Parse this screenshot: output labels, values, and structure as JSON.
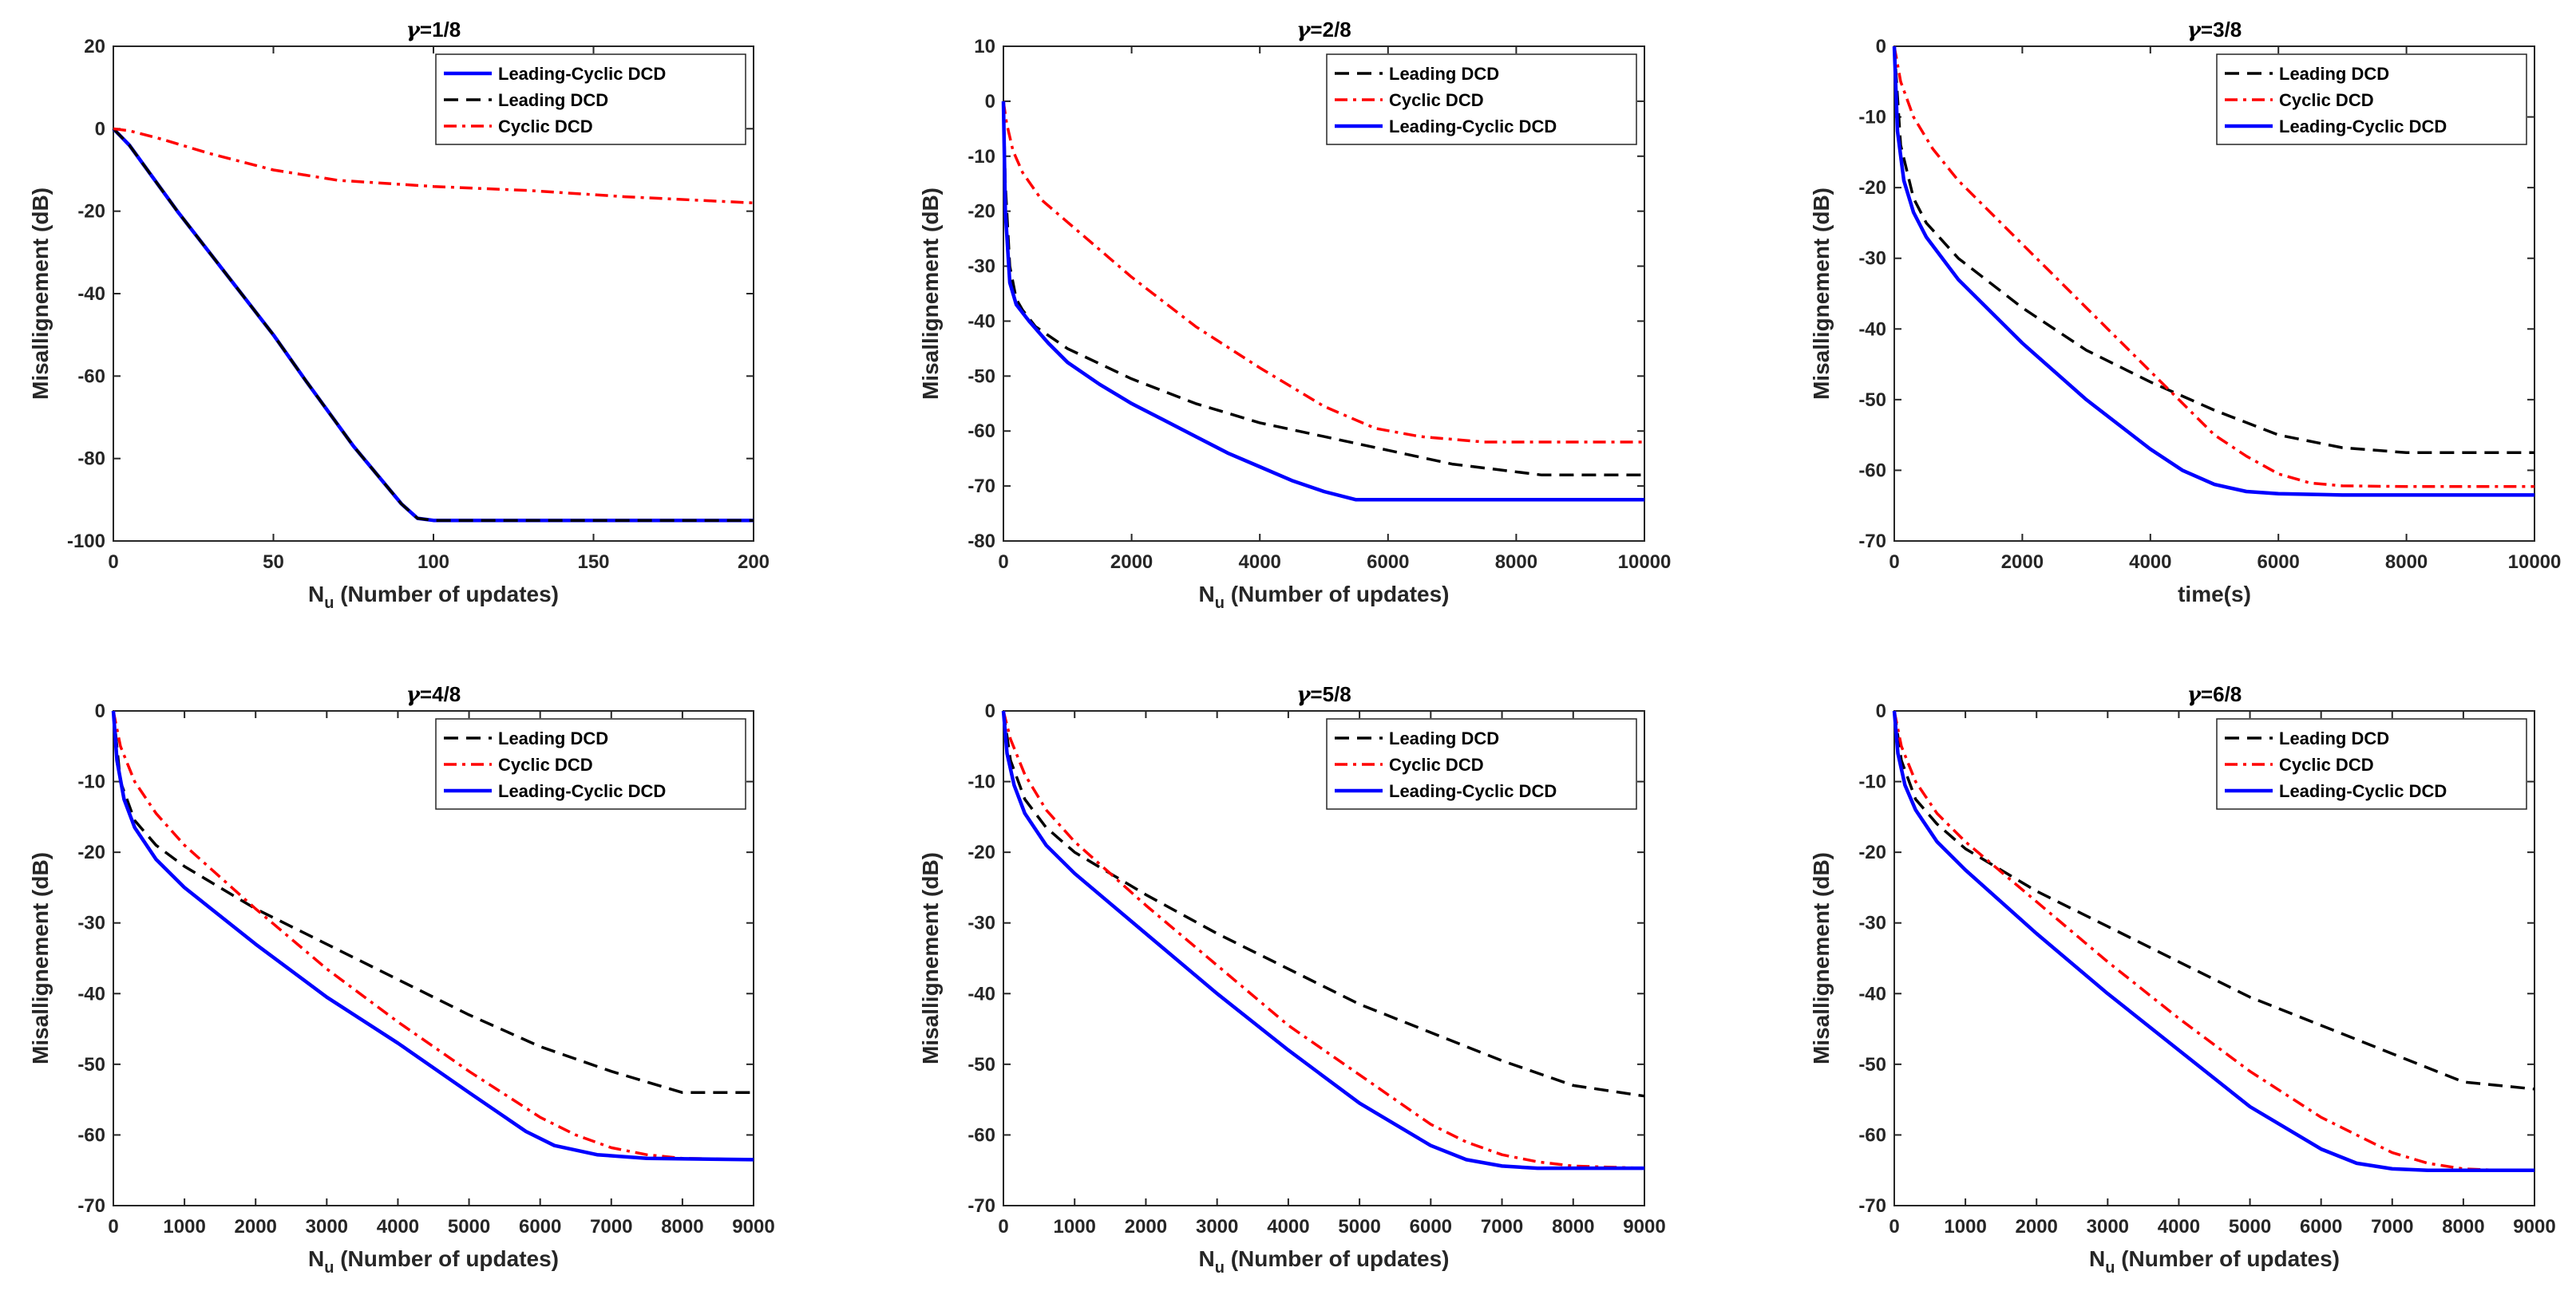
{
  "chart_data": [
    {
      "type": "line",
      "title_prefix": "γ",
      "title": "=1/8",
      "xlabel_main": "N",
      "xlabel_sub": "u",
      "xlabel_rest": " (Number of updates)",
      "ylabel": "Misallignement (dB)",
      "xlim": [
        0,
        200
      ],
      "ylim": [
        -100,
        20
      ],
      "xticks": [
        0,
        50,
        100,
        150,
        200
      ],
      "yticks": [
        20,
        0,
        -20,
        -40,
        -60,
        -80,
        -100
      ],
      "legend_position": "top-right",
      "series": [
        {
          "name": "Leading-Cyclic DCD",
          "style": "solid",
          "color": "#0000ff",
          "x": [
            0,
            5,
            20,
            40,
            50,
            60,
            75,
            90,
            95,
            100,
            150,
            200
          ],
          "y": [
            0,
            -4,
            -20,
            -40,
            -50,
            -61,
            -77,
            -91,
            -94.5,
            -95,
            -95,
            -95
          ]
        },
        {
          "name": "Leading DCD",
          "style": "dash",
          "color": "#000000",
          "x": [
            0,
            5,
            20,
            40,
            50,
            60,
            75,
            90,
            95,
            100,
            150,
            200
          ],
          "y": [
            0,
            -4,
            -20,
            -40,
            -50,
            -61,
            -77,
            -91,
            -94.5,
            -95,
            -95,
            -95
          ]
        },
        {
          "name": "Cyclic DCD",
          "style": "dashdot",
          "color": "#ff0000",
          "x": [
            0,
            5,
            15,
            30,
            50,
            70,
            100,
            130,
            160,
            200
          ],
          "y": [
            0,
            -0.5,
            -2.5,
            -6,
            -10,
            -12.5,
            -14,
            -15,
            -16.5,
            -18
          ]
        }
      ]
    },
    {
      "type": "line",
      "title_prefix": "γ",
      "title": "=2/8",
      "xlabel_main": "N",
      "xlabel_sub": "u",
      "xlabel_rest": " (Number of updates)",
      "ylabel": "Misallignement (dB)",
      "xlim": [
        0,
        10000
      ],
      "ylim": [
        -80,
        10
      ],
      "xticks": [
        0,
        2000,
        4000,
        6000,
        8000,
        10000
      ],
      "yticks": [
        10,
        0,
        -10,
        -20,
        -30,
        -40,
        -50,
        -60,
        -70,
        -80
      ],
      "legend_position": "top-right",
      "series": [
        {
          "name": "Leading DCD",
          "style": "dash",
          "color": "#000000",
          "x": [
            0,
            30,
            100,
            200,
            300,
            500,
            1000,
            2000,
            3000,
            4000,
            5000,
            6000,
            7000,
            8400,
            10000
          ],
          "y": [
            0,
            -15,
            -30,
            -36,
            -38,
            -41,
            -45,
            -50.5,
            -55,
            -58.5,
            -61,
            -63.5,
            -66,
            -68,
            -68
          ]
        },
        {
          "name": "Cyclic DCD",
          "style": "dashdot",
          "color": "#ff0000",
          "x": [
            0,
            50,
            150,
            300,
            600,
            1000,
            2000,
            3000,
            4000,
            5000,
            5800,
            6500,
            7500,
            10000
          ],
          "y": [
            0,
            -4,
            -9,
            -13,
            -18,
            -22,
            -32,
            -41,
            -48.5,
            -55.5,
            -59.5,
            -61,
            -62,
            -62
          ]
        },
        {
          "name": "Leading-Cyclic DCD",
          "style": "solid",
          "color": "#0000ff",
          "x": [
            0,
            30,
            100,
            200,
            400,
            700,
            1000,
            1500,
            2000,
            2500,
            3000,
            3500,
            4000,
            4500,
            5000,
            5500,
            10000
          ],
          "y": [
            0,
            -20,
            -33,
            -37,
            -40,
            -44,
            -47.5,
            -51.5,
            -55,
            -58,
            -61,
            -64,
            -66.5,
            -69,
            -71,
            -72.5,
            -72.5
          ]
        }
      ]
    },
    {
      "type": "line",
      "title_prefix": "γ",
      "title": "=3/8",
      "xlabel_main": "time(s)",
      "xlabel_sub": "",
      "xlabel_rest": "",
      "ylabel": "Misallignement (dB)",
      "xlim": [
        0,
        10000
      ],
      "ylim": [
        -70,
        0
      ],
      "xticks": [
        0,
        2000,
        4000,
        6000,
        8000,
        10000
      ],
      "yticks": [
        0,
        -10,
        -20,
        -30,
        -40,
        -50,
        -60,
        -70
      ],
      "legend_position": "top-right",
      "series": [
        {
          "name": "Leading DCD",
          "style": "dash",
          "color": "#000000",
          "x": [
            0,
            100,
            300,
            500,
            1000,
            2000,
            3000,
            4000,
            5000,
            6000,
            7000,
            8000,
            10000
          ],
          "y": [
            0,
            -14,
            -21.5,
            -25,
            -30,
            -37,
            -43,
            -47.5,
            -51.5,
            -55,
            -56.8,
            -57.5,
            -57.5
          ]
        },
        {
          "name": "Cyclic DCD",
          "style": "dashdot",
          "color": "#ff0000",
          "x": [
            0,
            100,
            300,
            600,
            1000,
            2000,
            3000,
            4000,
            5000,
            5500,
            6000,
            6500,
            7000,
            8000,
            10000
          ],
          "y": [
            0,
            -5,
            -10,
            -14.5,
            -19,
            -28,
            -37,
            -46,
            -55,
            -58,
            -60.5,
            -61.8,
            -62.2,
            -62.3,
            -62.3
          ]
        },
        {
          "name": "Leading-Cyclic DCD",
          "style": "solid",
          "color": "#0000ff",
          "x": [
            0,
            50,
            150,
            300,
            500,
            1000,
            2000,
            3000,
            4000,
            4500,
            5000,
            5500,
            6000,
            7000,
            10000
          ],
          "y": [
            0,
            -12,
            -19,
            -23.5,
            -27,
            -33,
            -42,
            -50,
            -57,
            -60,
            -62,
            -63,
            -63.3,
            -63.5,
            -63.5
          ]
        }
      ]
    },
    {
      "type": "line",
      "title_prefix": "γ",
      "title": "=4/8",
      "xlabel_main": "N",
      "xlabel_sub": "u",
      "xlabel_rest": " (Number of updates)",
      "ylabel": "Misallignement (dB)",
      "xlim": [
        0,
        9000
      ],
      "ylim": [
        -70,
        0
      ],
      "xticks": [
        0,
        1000,
        2000,
        3000,
        4000,
        5000,
        6000,
        7000,
        8000,
        9000
      ],
      "yticks": [
        0,
        -10,
        -20,
        -30,
        -40,
        -50,
        -60,
        -70
      ],
      "legend_position": "top-right",
      "series": [
        {
          "name": "Leading DCD",
          "style": "dash",
          "color": "#000000",
          "x": [
            0,
            100,
            300,
            600,
            1000,
            2000,
            3000,
            4000,
            5000,
            6000,
            7000,
            8000,
            9000
          ],
          "y": [
            0,
            -10,
            -15.5,
            -19,
            -22,
            -28,
            -33,
            -38,
            -43,
            -47.5,
            -51,
            -54,
            -54
          ]
        },
        {
          "name": "Cyclic DCD",
          "style": "dashdot",
          "color": "#ff0000",
          "x": [
            0,
            100,
            300,
            600,
            1000,
            2000,
            3000,
            4000,
            5000,
            6000,
            6500,
            7000,
            7500,
            8000,
            9000
          ],
          "y": [
            0,
            -5,
            -10,
            -14.5,
            -19,
            -28,
            -36.5,
            -44,
            -51,
            -57.5,
            -60,
            -61.8,
            -62.8,
            -63.3,
            -63.5
          ]
        },
        {
          "name": "Leading-Cyclic DCD",
          "style": "solid",
          "color": "#0000ff",
          "x": [
            0,
            50,
            150,
            300,
            600,
            1000,
            2000,
            3000,
            4000,
            5000,
            5800,
            6200,
            6800,
            7500,
            9000
          ],
          "y": [
            0,
            -7,
            -12.5,
            -16.5,
            -21,
            -25,
            -33,
            -40.5,
            -47,
            -54,
            -59.5,
            -61.5,
            -62.8,
            -63.3,
            -63.5
          ]
        }
      ]
    },
    {
      "type": "line",
      "title_prefix": "γ",
      "title": "=5/8",
      "xlabel_main": "N",
      "xlabel_sub": "u",
      "xlabel_rest": " (Number of updates)",
      "ylabel": "Misallignement (dB)",
      "xlim": [
        0,
        9000
      ],
      "ylim": [
        -70,
        0
      ],
      "xticks": [
        0,
        1000,
        2000,
        3000,
        4000,
        5000,
        6000,
        7000,
        8000,
        9000
      ],
      "yticks": [
        0,
        -10,
        -20,
        -30,
        -40,
        -50,
        -60,
        -70
      ],
      "legend_position": "top-right",
      "series": [
        {
          "name": "Leading DCD",
          "style": "dash",
          "color": "#000000",
          "x": [
            0,
            100,
            300,
            600,
            1000,
            2000,
            3000,
            4000,
            5000,
            6000,
            7000,
            8000,
            9000
          ],
          "y": [
            0,
            -7,
            -12.5,
            -16.5,
            -20,
            -26,
            -31.5,
            -36.5,
            -41.5,
            -45.5,
            -49.5,
            -53,
            -54.5
          ]
        },
        {
          "name": "Cyclic DCD",
          "style": "dashdot",
          "color": "#ff0000",
          "x": [
            0,
            100,
            300,
            600,
            1000,
            2000,
            3000,
            4000,
            5000,
            6000,
            6500,
            7000,
            7500,
            8000,
            9000
          ],
          "y": [
            0,
            -4,
            -9,
            -14,
            -18.5,
            -27.5,
            -36,
            -44.5,
            -51.5,
            -58.5,
            -61,
            -62.8,
            -63.8,
            -64.4,
            -64.7
          ]
        },
        {
          "name": "Leading-Cyclic DCD",
          "style": "solid",
          "color": "#0000ff",
          "x": [
            0,
            50,
            150,
            300,
            600,
            1000,
            2000,
            3000,
            4000,
            5000,
            6000,
            6500,
            7000,
            7500,
            9000
          ],
          "y": [
            0,
            -6,
            -10.5,
            -14.5,
            -19,
            -23,
            -31.5,
            -40,
            -48,
            -55.5,
            -61.5,
            -63.5,
            -64.4,
            -64.7,
            -64.7
          ]
        }
      ]
    },
    {
      "type": "line",
      "title_prefix": "γ",
      "title": "=6/8",
      "xlabel_main": "N",
      "xlabel_sub": "u",
      "xlabel_rest": " (Number of updates)",
      "ylabel": "Misallignement (dB)",
      "xlim": [
        0,
        9000
      ],
      "ylim": [
        -70,
        0
      ],
      "xticks": [
        0,
        1000,
        2000,
        3000,
        4000,
        5000,
        6000,
        7000,
        8000,
        9000
      ],
      "yticks": [
        0,
        -10,
        -20,
        -30,
        -40,
        -50,
        -60,
        -70
      ],
      "legend_position": "top-right",
      "series": [
        {
          "name": "Leading DCD",
          "style": "dash",
          "color": "#000000",
          "x": [
            0,
            100,
            300,
            600,
            1000,
            2000,
            3000,
            4000,
            5000,
            6000,
            7000,
            8000,
            9000
          ],
          "y": [
            0,
            -7,
            -12.5,
            -16,
            -19.5,
            -25.5,
            -30.5,
            -35.5,
            -40.5,
            -44.5,
            -48.5,
            -52.5,
            -53.5
          ]
        },
        {
          "name": "Cyclic DCD",
          "style": "dashdot",
          "color": "#ff0000",
          "x": [
            0,
            100,
            300,
            600,
            1000,
            2000,
            3000,
            4000,
            5000,
            6000,
            7000,
            7500,
            8000,
            8500,
            9000
          ],
          "y": [
            0,
            -5,
            -10,
            -14.5,
            -18.5,
            -27,
            -35.5,
            -43.5,
            -51,
            -57.5,
            -62.5,
            -64,
            -64.8,
            -65,
            -65
          ]
        },
        {
          "name": "Leading-Cyclic DCD",
          "style": "solid",
          "color": "#0000ff",
          "x": [
            0,
            50,
            150,
            300,
            600,
            1000,
            2000,
            3000,
            4000,
            5000,
            6000,
            6500,
            7000,
            7500,
            9000
          ],
          "y": [
            0,
            -6,
            -10.5,
            -14,
            -18.5,
            -22.5,
            -31.5,
            -40,
            -48,
            -56,
            -62,
            -64,
            -64.8,
            -65,
            -65
          ]
        }
      ]
    }
  ]
}
